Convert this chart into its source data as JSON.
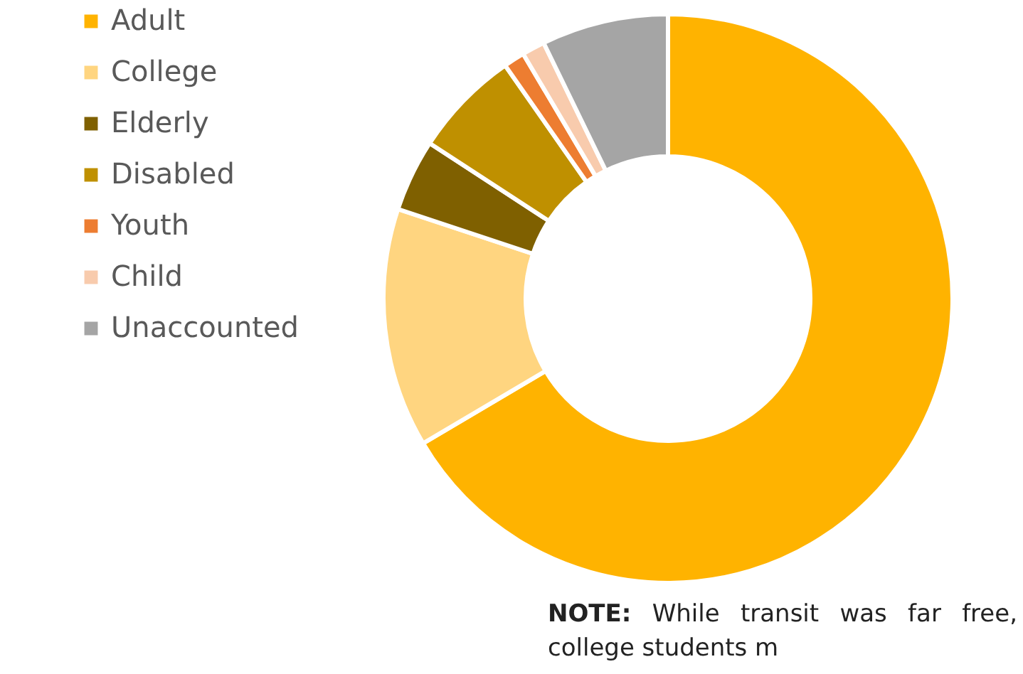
{
  "chart_data": {
    "type": "donut",
    "categories": [
      "Adult",
      "College",
      "Elderly",
      "Disabled",
      "Youth",
      "Child",
      "Unaccounted"
    ],
    "values": [
      66.5,
      13.6,
      4.1,
      6.1,
      1.2,
      1.3,
      7.2
    ],
    "colors": [
      "#ffb300",
      "#ffd580",
      "#7f6000",
      "#bf9000",
      "#ed7d31",
      "#f8cbad",
      "#a5a5a5"
    ],
    "legend": "left",
    "annotations": [
      "NOTE: While transit was far free, college students m"
    ]
  }
}
